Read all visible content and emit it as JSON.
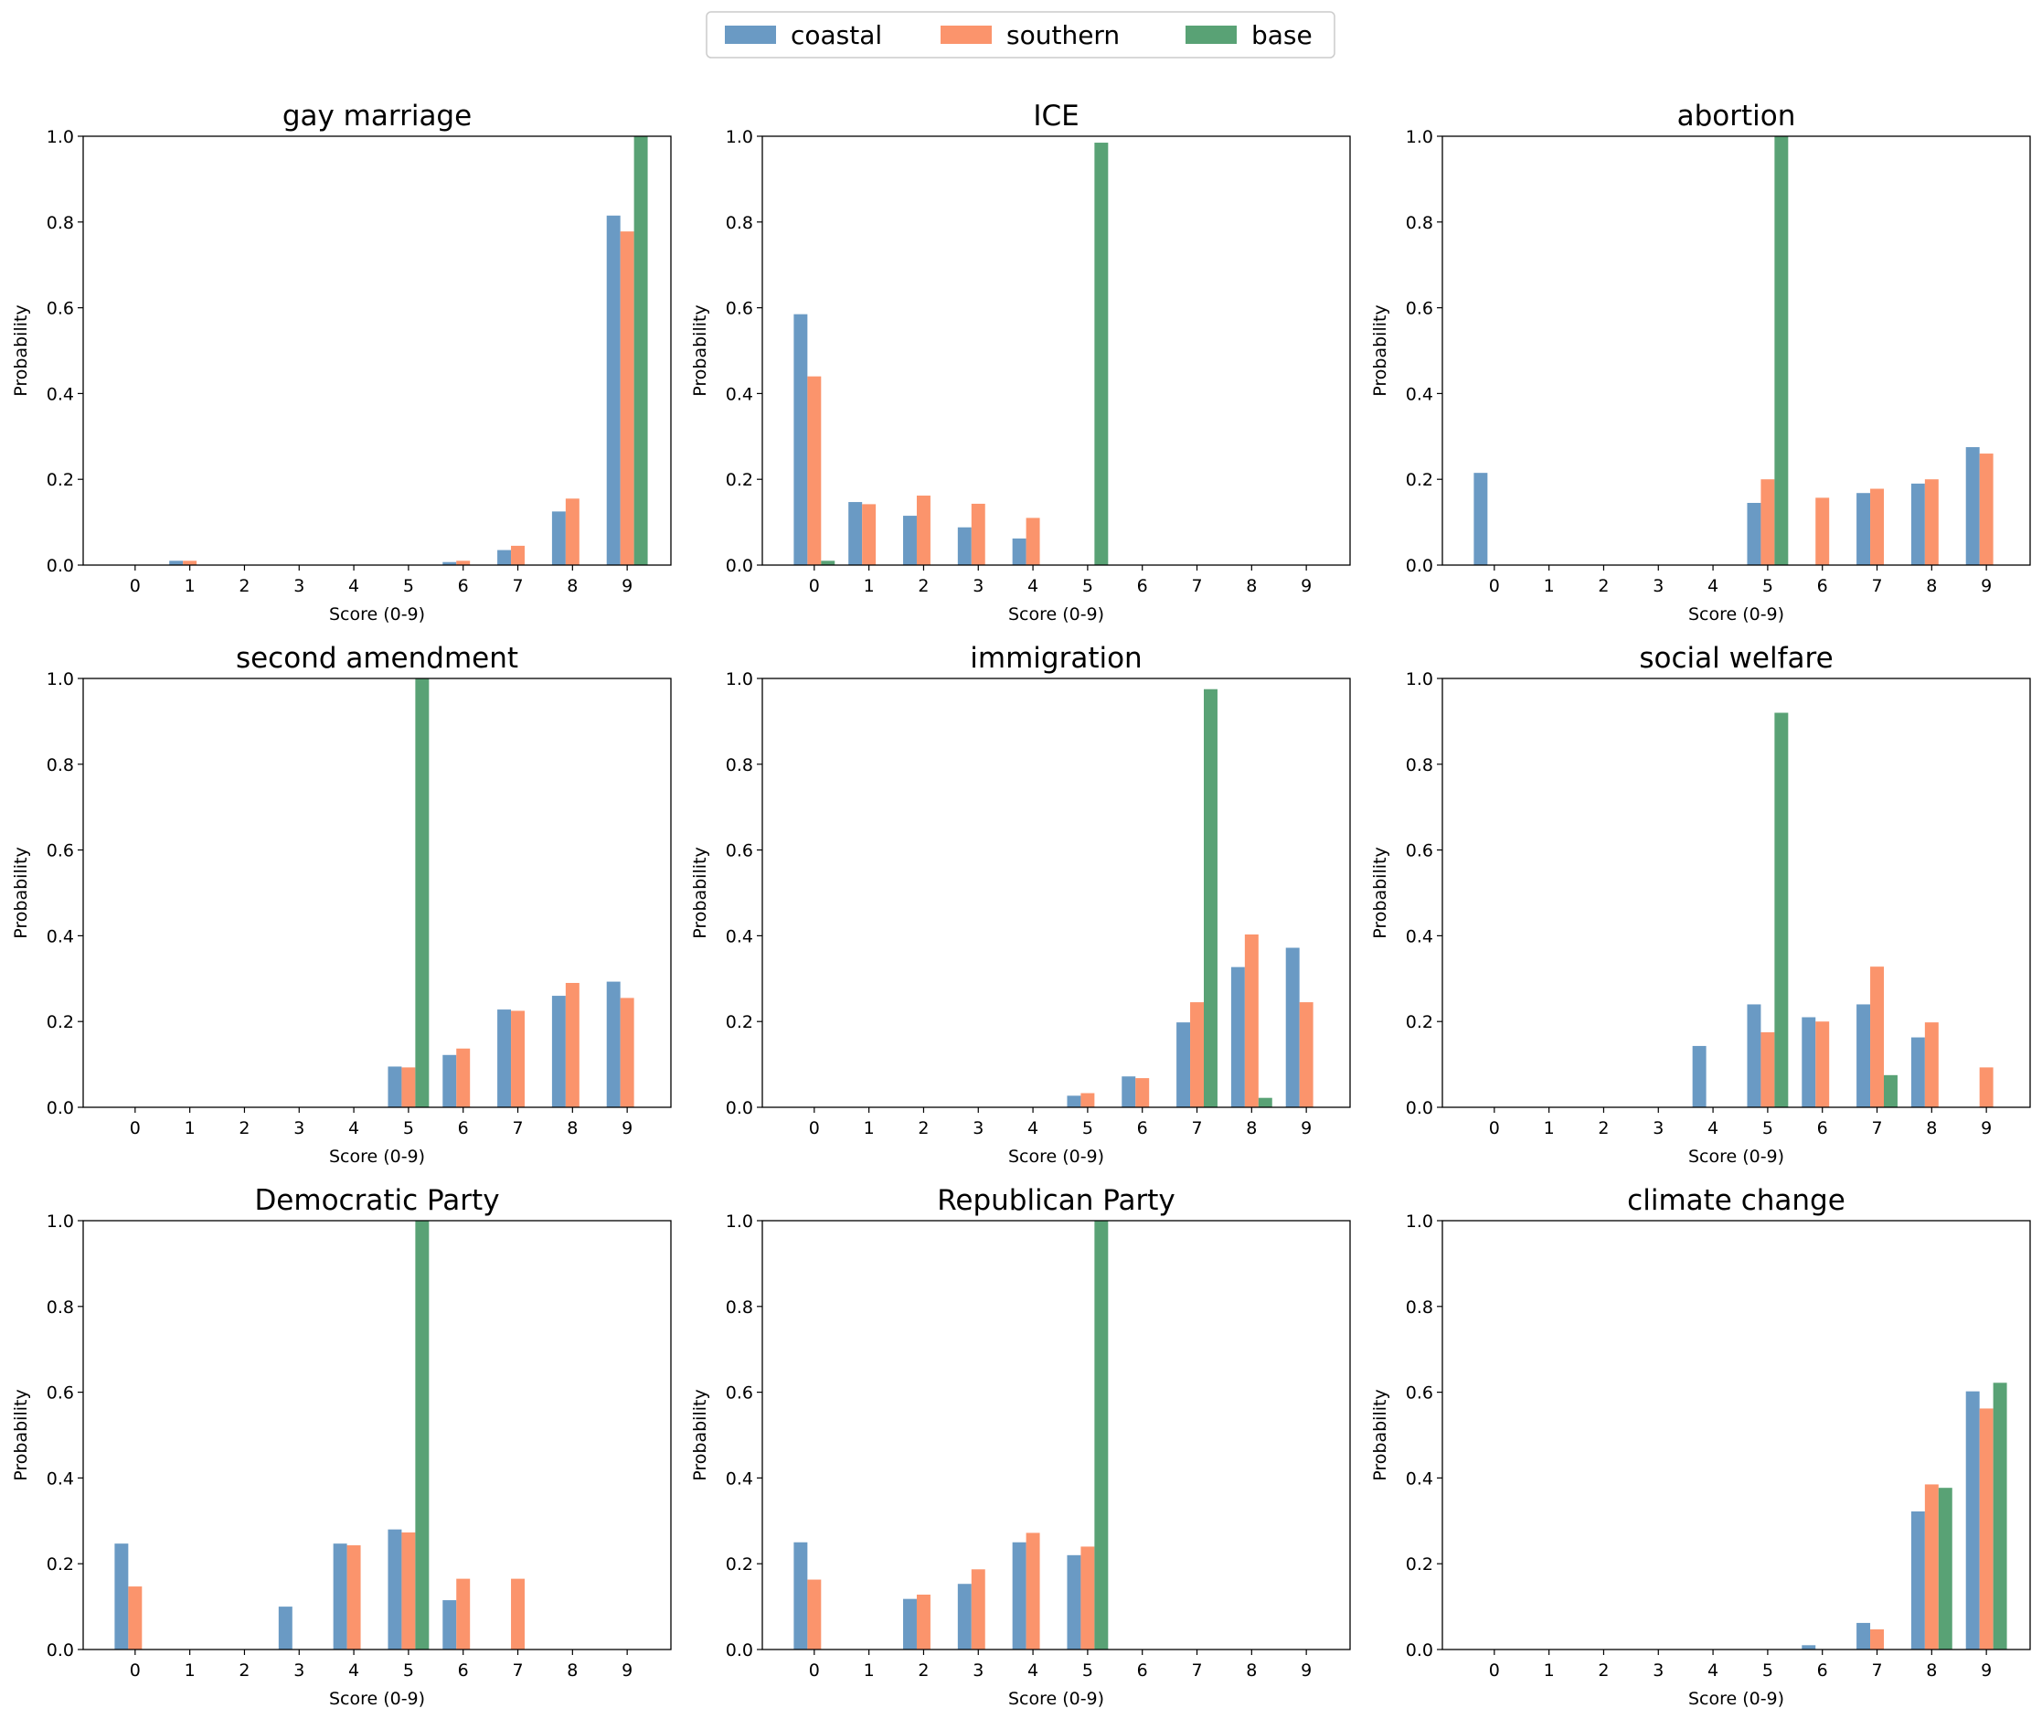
{
  "colors": {
    "coastal": "#6a9ac4",
    "southern": "#fb946c",
    "base": "#59a275"
  },
  "legend": {
    "items": [
      "coastal",
      "southern",
      "base"
    ]
  },
  "chart_data": [
    {
      "type": "bar",
      "title": "gay marriage",
      "xlabel": "Score (0-9)",
      "ylabel": "Probability",
      "ylim": [
        0,
        1
      ],
      "categories": [
        "0",
        "1",
        "2",
        "3",
        "4",
        "5",
        "6",
        "7",
        "8",
        "9"
      ],
      "yticks": [
        "0.0",
        "0.2",
        "0.4",
        "0.6",
        "0.8",
        "1.0"
      ],
      "series": [
        {
          "name": "coastal",
          "values": [
            0,
            0.01,
            0,
            0,
            0,
            0,
            0.007,
            0.035,
            0.125,
            0.815
          ]
        },
        {
          "name": "southern",
          "values": [
            0,
            0.01,
            0,
            0,
            0,
            0,
            0.01,
            0.045,
            0.155,
            0.778
          ]
        },
        {
          "name": "base",
          "values": [
            0,
            0,
            0,
            0,
            0,
            0,
            0,
            0,
            0,
            1.0
          ]
        }
      ]
    },
    {
      "type": "bar",
      "title": "ICE",
      "xlabel": "Score (0-9)",
      "ylabel": "Probability",
      "ylim": [
        0,
        1
      ],
      "categories": [
        "0",
        "1",
        "2",
        "3",
        "4",
        "5",
        "6",
        "7",
        "8",
        "9"
      ],
      "yticks": [
        "0.0",
        "0.2",
        "0.4",
        "0.6",
        "0.8",
        "1.0"
      ],
      "series": [
        {
          "name": "coastal",
          "values": [
            0.585,
            0.147,
            0.115,
            0.088,
            0.062,
            0,
            0,
            0,
            0,
            0
          ]
        },
        {
          "name": "southern",
          "values": [
            0.44,
            0.142,
            0.162,
            0.143,
            0.11,
            0,
            0,
            0,
            0,
            0
          ]
        },
        {
          "name": "base",
          "values": [
            0.01,
            0,
            0,
            0,
            0,
            0.985,
            0,
            0,
            0,
            0
          ]
        }
      ]
    },
    {
      "type": "bar",
      "title": "abortion",
      "xlabel": "Score (0-9)",
      "ylabel": "Probability",
      "ylim": [
        0,
        1
      ],
      "categories": [
        "0",
        "1",
        "2",
        "3",
        "4",
        "5",
        "6",
        "7",
        "8",
        "9"
      ],
      "yticks": [
        "0.0",
        "0.2",
        "0.4",
        "0.6",
        "0.8",
        "1.0"
      ],
      "series": [
        {
          "name": "coastal",
          "values": [
            0.215,
            0,
            0,
            0,
            0,
            0.145,
            0,
            0.168,
            0.19,
            0.275
          ]
        },
        {
          "name": "southern",
          "values": [
            0,
            0,
            0,
            0,
            0,
            0.2,
            0.157,
            0.178,
            0.2,
            0.26
          ]
        },
        {
          "name": "base",
          "values": [
            0,
            0,
            0,
            0,
            0,
            1.0,
            0,
            0,
            0,
            0
          ]
        }
      ]
    },
    {
      "type": "bar",
      "title": "second amendment",
      "xlabel": "Score (0-9)",
      "ylabel": "Probability",
      "ylim": [
        0,
        1
      ],
      "categories": [
        "0",
        "1",
        "2",
        "3",
        "4",
        "5",
        "6",
        "7",
        "8",
        "9"
      ],
      "yticks": [
        "0.0",
        "0.2",
        "0.4",
        "0.6",
        "0.8",
        "1.0"
      ],
      "series": [
        {
          "name": "coastal",
          "values": [
            0,
            0,
            0,
            0,
            0,
            0.095,
            0.122,
            0.228,
            0.26,
            0.293
          ]
        },
        {
          "name": "southern",
          "values": [
            0,
            0,
            0,
            0,
            0,
            0.093,
            0.137,
            0.225,
            0.29,
            0.255
          ]
        },
        {
          "name": "base",
          "values": [
            0,
            0,
            0,
            0,
            0,
            1.0,
            0,
            0,
            0,
            0
          ]
        }
      ]
    },
    {
      "type": "bar",
      "title": "immigration",
      "xlabel": "Score (0-9)",
      "ylabel": "Probability",
      "ylim": [
        0,
        1
      ],
      "categories": [
        "0",
        "1",
        "2",
        "3",
        "4",
        "5",
        "6",
        "7",
        "8",
        "9"
      ],
      "yticks": [
        "0.0",
        "0.2",
        "0.4",
        "0.6",
        "0.8",
        "1.0"
      ],
      "series": [
        {
          "name": "coastal",
          "values": [
            0,
            0,
            0,
            0,
            0,
            0.027,
            0.072,
            0.198,
            0.327,
            0.372
          ]
        },
        {
          "name": "southern",
          "values": [
            0,
            0,
            0,
            0,
            0,
            0.033,
            0.068,
            0.245,
            0.403,
            0.245
          ]
        },
        {
          "name": "base",
          "values": [
            0,
            0,
            0,
            0,
            0,
            0,
            0,
            0.975,
            0.022,
            0
          ]
        }
      ]
    },
    {
      "type": "bar",
      "title": "social welfare",
      "xlabel": "Score (0-9)",
      "ylabel": "Probability",
      "ylim": [
        0,
        1
      ],
      "categories": [
        "0",
        "1",
        "2",
        "3",
        "4",
        "5",
        "6",
        "7",
        "8",
        "9"
      ],
      "yticks": [
        "0.0",
        "0.2",
        "0.4",
        "0.6",
        "0.8",
        "1.0"
      ],
      "series": [
        {
          "name": "coastal",
          "values": [
            0,
            0,
            0,
            0,
            0.143,
            0.24,
            0.21,
            0.24,
            0.163,
            0
          ]
        },
        {
          "name": "southern",
          "values": [
            0,
            0,
            0,
            0,
            0,
            0.175,
            0.2,
            0.328,
            0.198,
            0.093
          ]
        },
        {
          "name": "base",
          "values": [
            0,
            0,
            0,
            0,
            0,
            0.92,
            0,
            0.075,
            0,
            0
          ]
        }
      ]
    },
    {
      "type": "bar",
      "title": "Democratic Party",
      "xlabel": "Score (0-9)",
      "ylabel": "Probability",
      "ylim": [
        0,
        1
      ],
      "categories": [
        "0",
        "1",
        "2",
        "3",
        "4",
        "5",
        "6",
        "7",
        "8",
        "9"
      ],
      "yticks": [
        "0.0",
        "0.2",
        "0.4",
        "0.6",
        "0.8",
        "1.0"
      ],
      "series": [
        {
          "name": "coastal",
          "values": [
            0.247,
            0,
            0,
            0.1,
            0.247,
            0.28,
            0.115,
            0,
            0,
            0
          ]
        },
        {
          "name": "southern",
          "values": [
            0.147,
            0,
            0,
            0,
            0.243,
            0.273,
            0.165,
            0.165,
            0,
            0
          ]
        },
        {
          "name": "base",
          "values": [
            0,
            0,
            0,
            0,
            0,
            1.0,
            0,
            0,
            0,
            0
          ]
        }
      ]
    },
    {
      "type": "bar",
      "title": "Republican Party",
      "xlabel": "Score (0-9)",
      "ylabel": "Probability",
      "ylim": [
        0,
        1
      ],
      "categories": [
        "0",
        "1",
        "2",
        "3",
        "4",
        "5",
        "6",
        "7",
        "8",
        "9"
      ],
      "yticks": [
        "0.0",
        "0.2",
        "0.4",
        "0.6",
        "0.8",
        "1.0"
      ],
      "series": [
        {
          "name": "coastal",
          "values": [
            0.25,
            0,
            0.118,
            0.153,
            0.25,
            0.22,
            0,
            0,
            0,
            0
          ]
        },
        {
          "name": "southern",
          "values": [
            0.163,
            0,
            0.128,
            0.187,
            0.272,
            0.24,
            0,
            0,
            0,
            0
          ]
        },
        {
          "name": "base",
          "values": [
            0,
            0,
            0,
            0,
            0,
            1.0,
            0,
            0,
            0,
            0
          ]
        }
      ]
    },
    {
      "type": "bar",
      "title": "climate change",
      "xlabel": "Score (0-9)",
      "ylabel": "Probability",
      "ylim": [
        0,
        1
      ],
      "categories": [
        "0",
        "1",
        "2",
        "3",
        "4",
        "5",
        "6",
        "7",
        "8",
        "9"
      ],
      "yticks": [
        "0.0",
        "0.2",
        "0.4",
        "0.6",
        "0.8",
        "1.0"
      ],
      "series": [
        {
          "name": "coastal",
          "values": [
            0,
            0,
            0,
            0,
            0,
            0,
            0.01,
            0.062,
            0.322,
            0.602
          ]
        },
        {
          "name": "southern",
          "values": [
            0,
            0,
            0,
            0,
            0,
            0,
            0,
            0.047,
            0.385,
            0.562
          ]
        },
        {
          "name": "base",
          "values": [
            0,
            0,
            0,
            0,
            0,
            0,
            0,
            0,
            0.377,
            0.622
          ]
        }
      ]
    }
  ]
}
